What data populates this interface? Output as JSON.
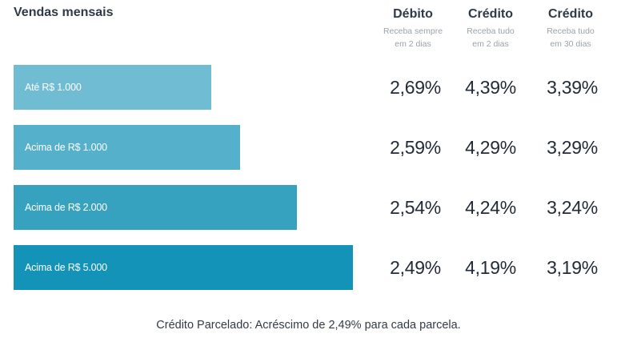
{
  "title": "Vendas mensais",
  "columns": [
    {
      "heading": "Débito",
      "sub1": "Receba sempre",
      "sub2": "em 2 dias"
    },
    {
      "heading": "Crédito",
      "sub1": "Receba tudo",
      "sub2": "em 2 dias"
    },
    {
      "heading": "Crédito",
      "sub1": "Receba tudo",
      "sub2": "em 30 dias"
    }
  ],
  "rows": [
    {
      "label": "Até R$ 1.000",
      "color": "#6fbcd3",
      "values": [
        "2,69%",
        "4,39%",
        "3,39%"
      ]
    },
    {
      "label": "Acima de R$ 1.000",
      "color": "#55b0cb",
      "values": [
        "2,59%",
        "4,29%",
        "3,29%"
      ]
    },
    {
      "label": "Acima de R$ 2.000",
      "color": "#36a2c0",
      "values": [
        "2,54%",
        "4,24%",
        "3,24%"
      ]
    },
    {
      "label": "Acima de R$ 5.000",
      "color": "#1393b7",
      "values": [
        "2,49%",
        "4,19%",
        "3,19%"
      ]
    }
  ],
  "footer": "Crédito Parcelado: Acréscimo de 2,49% para cada parcela."
}
